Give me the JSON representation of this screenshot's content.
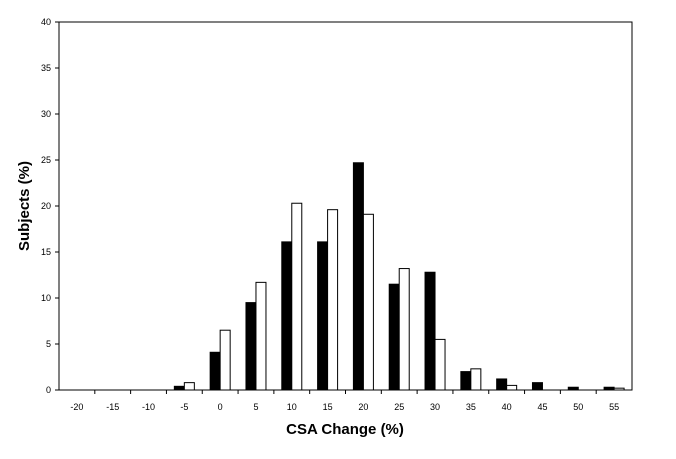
{
  "chart_data": {
    "type": "bar",
    "title": "",
    "xlabel": "CSA Change (%)",
    "ylabel": "Subjects (%)",
    "categories": [
      "-20",
      "-15",
      "-10",
      "-5",
      "0",
      "5",
      "10",
      "15",
      "20",
      "25",
      "30",
      "35",
      "40",
      "45",
      "50",
      "55"
    ],
    "ylim": [
      0,
      40
    ],
    "yticks": [
      "0",
      "5",
      "10",
      "15",
      "20",
      "25",
      "30",
      "35",
      "40"
    ],
    "grid": false,
    "legend": "none",
    "series": [
      {
        "color": "#000000",
        "values": [
          0,
          0,
          0,
          0.4,
          4.1,
          9.5,
          16.1,
          16.1,
          24.7,
          11.5,
          12.8,
          2.0,
          1.2,
          0.8,
          0.3,
          0.3
        ]
      },
      {
        "color": "#ffffff",
        "values": [
          0,
          0,
          0,
          0.8,
          6.5,
          11.7,
          20.3,
          19.6,
          19.1,
          13.2,
          5.5,
          2.3,
          0.5,
          0,
          0,
          0.2
        ]
      }
    ]
  }
}
